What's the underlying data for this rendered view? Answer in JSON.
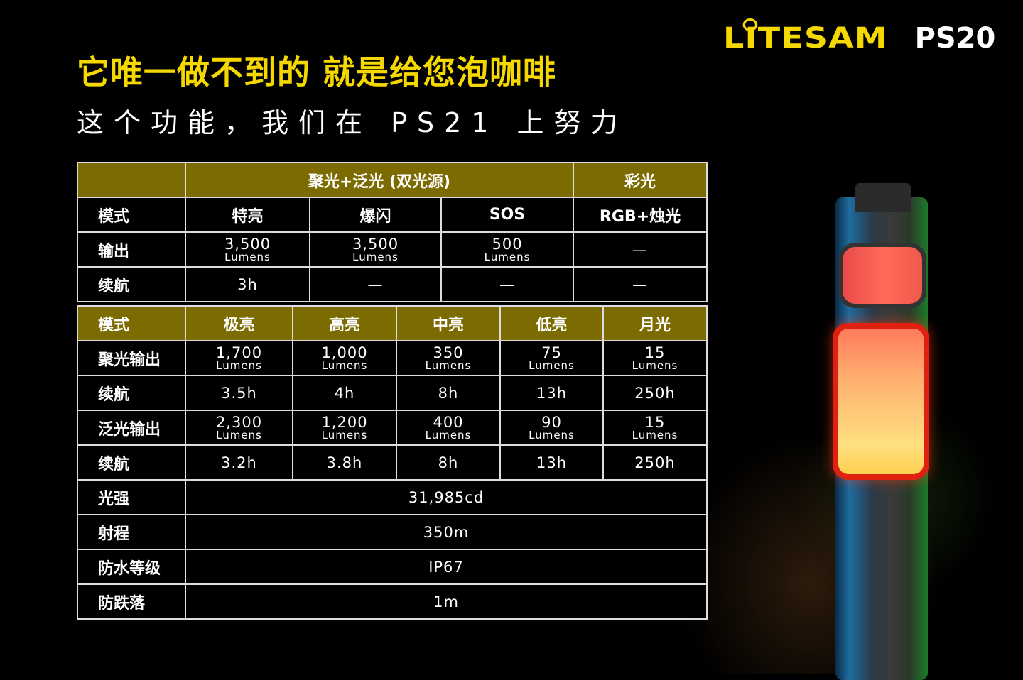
{
  "header": {
    "title": "它唯一做不到的 就是给您泡咖啡",
    "subtitle": "这个功能，我们在 PS21 上努力"
  },
  "logo": {
    "brand": "LITESAM",
    "model": "PS20"
  },
  "colors": {
    "accent_yellow": "#f5d800",
    "olive_header": "#7b6b00",
    "background": "#000000"
  },
  "dual_source_table": {
    "group_header": {
      "empty": "",
      "dual": "聚光+泛光 (双光源)",
      "color": "彩光"
    },
    "mode_row": {
      "label": "模式",
      "cells": [
        "特亮",
        "爆闪",
        "SOS",
        "RGB+烛光"
      ]
    },
    "output_row": {
      "label": "输出",
      "cells": [
        {
          "value": "3,500",
          "unit": "Lumens"
        },
        {
          "value": "3,500",
          "unit": "Lumens"
        },
        {
          "value": "500",
          "unit": "Lumens"
        },
        {
          "value": "—",
          "unit": ""
        }
      ]
    },
    "runtime_row": {
      "label": "续航",
      "cells": [
        {
          "value": "3h",
          "unit": ""
        },
        {
          "value": "—",
          "unit": ""
        },
        {
          "value": "—",
          "unit": ""
        },
        {
          "value": "—",
          "unit": ""
        }
      ]
    }
  },
  "mode_table": {
    "header": {
      "label": "模式",
      "cells": [
        "极亮",
        "高亮",
        "中亮",
        "低亮",
        "月光"
      ]
    },
    "rows": [
      {
        "label": "聚光输出",
        "cells": [
          {
            "value": "1,700",
            "unit": "Lumens"
          },
          {
            "value": "1,000",
            "unit": "Lumens"
          },
          {
            "value": "350",
            "unit": "Lumens"
          },
          {
            "value": "75",
            "unit": "Lumens"
          },
          {
            "value": "15",
            "unit": "Lumens"
          }
        ]
      },
      {
        "label": "续航",
        "cells": [
          {
            "value": "3.5h",
            "unit": ""
          },
          {
            "value": "4h",
            "unit": ""
          },
          {
            "value": "8h",
            "unit": ""
          },
          {
            "value": "13h",
            "unit": ""
          },
          {
            "value": "250h",
            "unit": ""
          }
        ]
      },
      {
        "label": "泛光输出",
        "cells": [
          {
            "value": "2,300",
            "unit": "Lumens"
          },
          {
            "value": "1,200",
            "unit": "Lumens"
          },
          {
            "value": "400",
            "unit": "Lumens"
          },
          {
            "value": "90",
            "unit": "Lumens"
          },
          {
            "value": "15",
            "unit": "Lumens"
          }
        ]
      },
      {
        "label": "续航",
        "cells": [
          {
            "value": "3.2h",
            "unit": ""
          },
          {
            "value": "3.8h",
            "unit": ""
          },
          {
            "value": "8h",
            "unit": ""
          },
          {
            "value": "13h",
            "unit": ""
          },
          {
            "value": "250h",
            "unit": ""
          }
        ]
      }
    ],
    "summary_rows": [
      {
        "label": "光强",
        "value": "31,985cd"
      },
      {
        "label": "射程",
        "value": "350m"
      },
      {
        "label": "防水等级",
        "value": "IP67"
      },
      {
        "label": "防跌落",
        "value": "1m"
      }
    ]
  }
}
